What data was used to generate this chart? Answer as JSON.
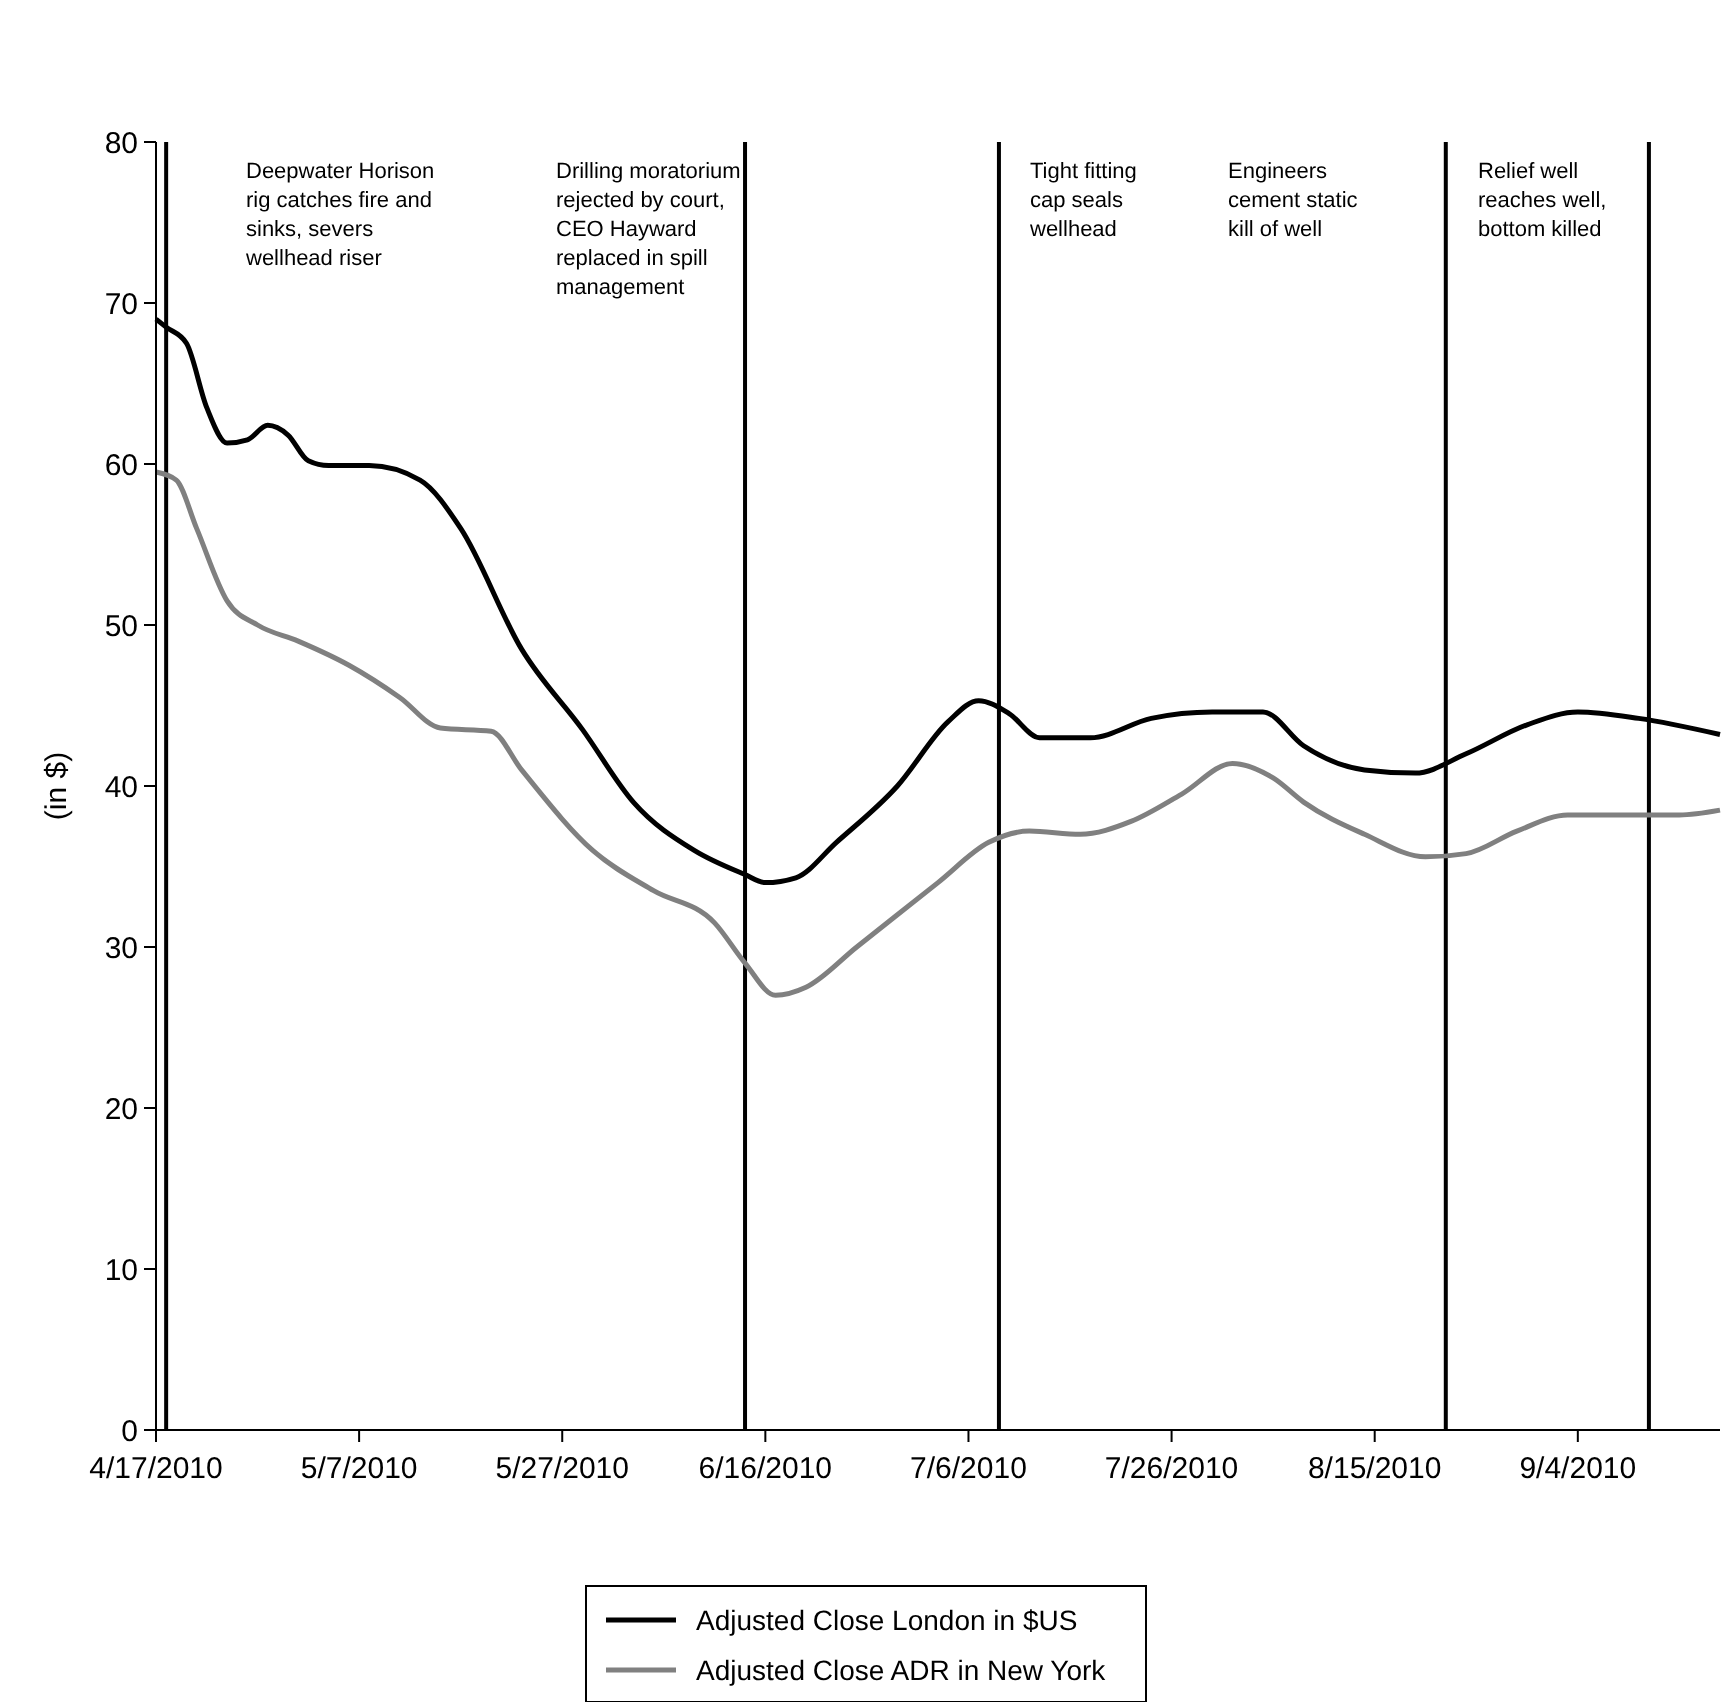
{
  "chart_data": {
    "type": "line",
    "ylabel": "(in $)",
    "xlim": [
      "2010-04-17",
      "2010-09-18"
    ],
    "ylim": [
      0,
      80
    ],
    "xticks": [
      {
        "value": "2010-04-17",
        "label": "4/17/2010"
      },
      {
        "value": "2010-05-07",
        "label": "5/7/2010"
      },
      {
        "value": "2010-05-27",
        "label": "5/27/2010"
      },
      {
        "value": "2010-06-16",
        "label": "6/16/2010"
      },
      {
        "value": "2010-07-06",
        "label": "7/6/2010"
      },
      {
        "value": "2010-07-26",
        "label": "7/26/2010"
      },
      {
        "value": "2010-08-15",
        "label": "8/15/2010"
      },
      {
        "value": "2010-09-04",
        "label": "9/4/2010"
      }
    ],
    "yticks": [
      0,
      10,
      20,
      30,
      40,
      50,
      60,
      70,
      80
    ],
    "grid": false,
    "legend": "bottom",
    "marker": "none",
    "line_style": "solid",
    "series": [
      {
        "name": "Adjusted Close London in $US",
        "color": "#000000",
        "x": [
          "2010-04-17",
          "2010-04-18",
          "2010-04-20",
          "2010-04-22",
          "2010-04-24",
          "2010-04-26",
          "2010-04-28",
          "2010-04-30",
          "2010-05-02",
          "2010-05-04",
          "2010-05-08",
          "2010-05-13",
          "2010-05-17",
          "2010-05-23",
          "2010-05-29",
          "2010-06-03",
          "2010-06-09",
          "2010-06-14",
          "2010-06-16",
          "2010-06-19",
          "2010-06-23",
          "2010-06-29",
          "2010-07-04",
          "2010-07-07",
          "2010-07-10",
          "2010-07-13",
          "2010-07-18",
          "2010-07-24",
          "2010-07-30",
          "2010-08-04",
          "2010-08-08",
          "2010-08-14",
          "2010-08-19",
          "2010-08-24",
          "2010-08-30",
          "2010-09-04",
          "2010-09-10",
          "2010-09-18"
        ],
        "values": [
          69,
          68.5,
          67.5,
          63.5,
          61.3,
          61.5,
          62.4,
          61.8,
          60.2,
          59.9,
          59.9,
          59,
          56,
          48.5,
          43.5,
          39,
          36,
          34.5,
          34,
          34.3,
          36.5,
          40,
          44,
          45.3,
          44.5,
          43,
          43,
          44.2,
          44.6,
          44.6,
          42.5,
          41,
          40.8,
          42,
          43.8,
          44.6,
          44.2,
          43.2
        ]
      },
      {
        "name": "Adjusted Close ADR in New York",
        "color": "#808080",
        "x": [
          "2010-04-17",
          "2010-04-19",
          "2010-04-21",
          "2010-04-24",
          "2010-04-27",
          "2010-05-01",
          "2010-05-06",
          "2010-05-11",
          "2010-05-15",
          "2010-05-20",
          "2010-05-23",
          "2010-05-30",
          "2010-06-05",
          "2010-06-11",
          "2010-06-14",
          "2010-06-17",
          "2010-06-20",
          "2010-06-25",
          "2010-07-03",
          "2010-07-08",
          "2010-07-12",
          "2010-07-17",
          "2010-07-22",
          "2010-07-27",
          "2010-08-01",
          "2010-08-05",
          "2010-08-08",
          "2010-08-14",
          "2010-08-20",
          "2010-08-24",
          "2010-08-29",
          "2010-09-03",
          "2010-09-08",
          "2010-09-14",
          "2010-09-18"
        ],
        "values": [
          59.5,
          59,
          56,
          51.5,
          50,
          49,
          47.5,
          45.5,
          43.6,
          43.4,
          41,
          36,
          33.5,
          31.5,
          29,
          27,
          27.5,
          30,
          34,
          36.5,
          37.2,
          37,
          37.8,
          39.5,
          41.4,
          40.5,
          39,
          37,
          35.6,
          35.8,
          37.2,
          38.2,
          38.2,
          38.2,
          38.5
        ]
      }
    ],
    "ref_lines": [
      {
        "axis": "x",
        "value": "2010-04-18",
        "color": "#000000"
      },
      {
        "axis": "x",
        "value": "2010-06-14",
        "color": "#000000"
      },
      {
        "axis": "x",
        "value": "2010-07-09",
        "color": "#000000"
      },
      {
        "axis": "x",
        "value": "2010-08-22",
        "color": "#000000"
      },
      {
        "axis": "x",
        "value": "2010-09-11",
        "color": "#000000"
      }
    ],
    "annotations": [
      "Deepwater Horison\nrig catches fire and\nsinks, severs\nwellhead riser",
      "Drilling moratorium\nrejected by court,\nCEO Hayward\nreplaced in spill\nmanagement",
      "Tight fitting\ncap seals\nwellhead",
      "Engineers\ncement static\nkill of well",
      "Relief well\nreaches well,\nbottom killed"
    ]
  }
}
